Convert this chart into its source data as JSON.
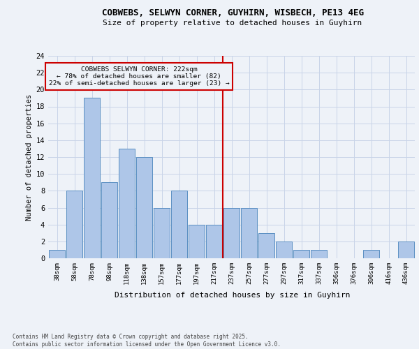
{
  "title_line1": "COBWEBS, SELWYN CORNER, GUYHIRN, WISBECH, PE13 4EG",
  "title_line2": "Size of property relative to detached houses in Guyhirn",
  "xlabel": "Distribution of detached houses by size in Guyhirn",
  "ylabel": "Number of detached properties",
  "footnote": "Contains HM Land Registry data © Crown copyright and database right 2025.\nContains public sector information licensed under the Open Government Licence v3.0.",
  "annotation_title": "COBWEBS SELWYN CORNER: 222sqm",
  "annotation_line2": "← 78% of detached houses are smaller (82)",
  "annotation_line3": "22% of semi-detached houses are larger (23) →",
  "bar_labels": [
    "38sqm",
    "58sqm",
    "78sqm",
    "98sqm",
    "118sqm",
    "138sqm",
    "157sqm",
    "177sqm",
    "197sqm",
    "217sqm",
    "237sqm",
    "257sqm",
    "277sqm",
    "297sqm",
    "317sqm",
    "337sqm",
    "356sqm",
    "376sqm",
    "396sqm",
    "416sqm",
    "436sqm"
  ],
  "bar_values": [
    1,
    8,
    19,
    9,
    13,
    12,
    6,
    8,
    4,
    4,
    6,
    6,
    3,
    2,
    1,
    1,
    0,
    0,
    1,
    0,
    2
  ],
  "bar_color": "#aec6e8",
  "bar_edge_color": "#5a8fc2",
  "vline_x": 9.5,
  "vline_color": "#cc0000",
  "annotation_box_color": "#cc0000",
  "background_color": "#eef2f8",
  "grid_color": "#c8d4e8",
  "ylim": [
    0,
    24
  ],
  "yticks": [
    0,
    2,
    4,
    6,
    8,
    10,
    12,
    14,
    16,
    18,
    20,
    22,
    24
  ]
}
